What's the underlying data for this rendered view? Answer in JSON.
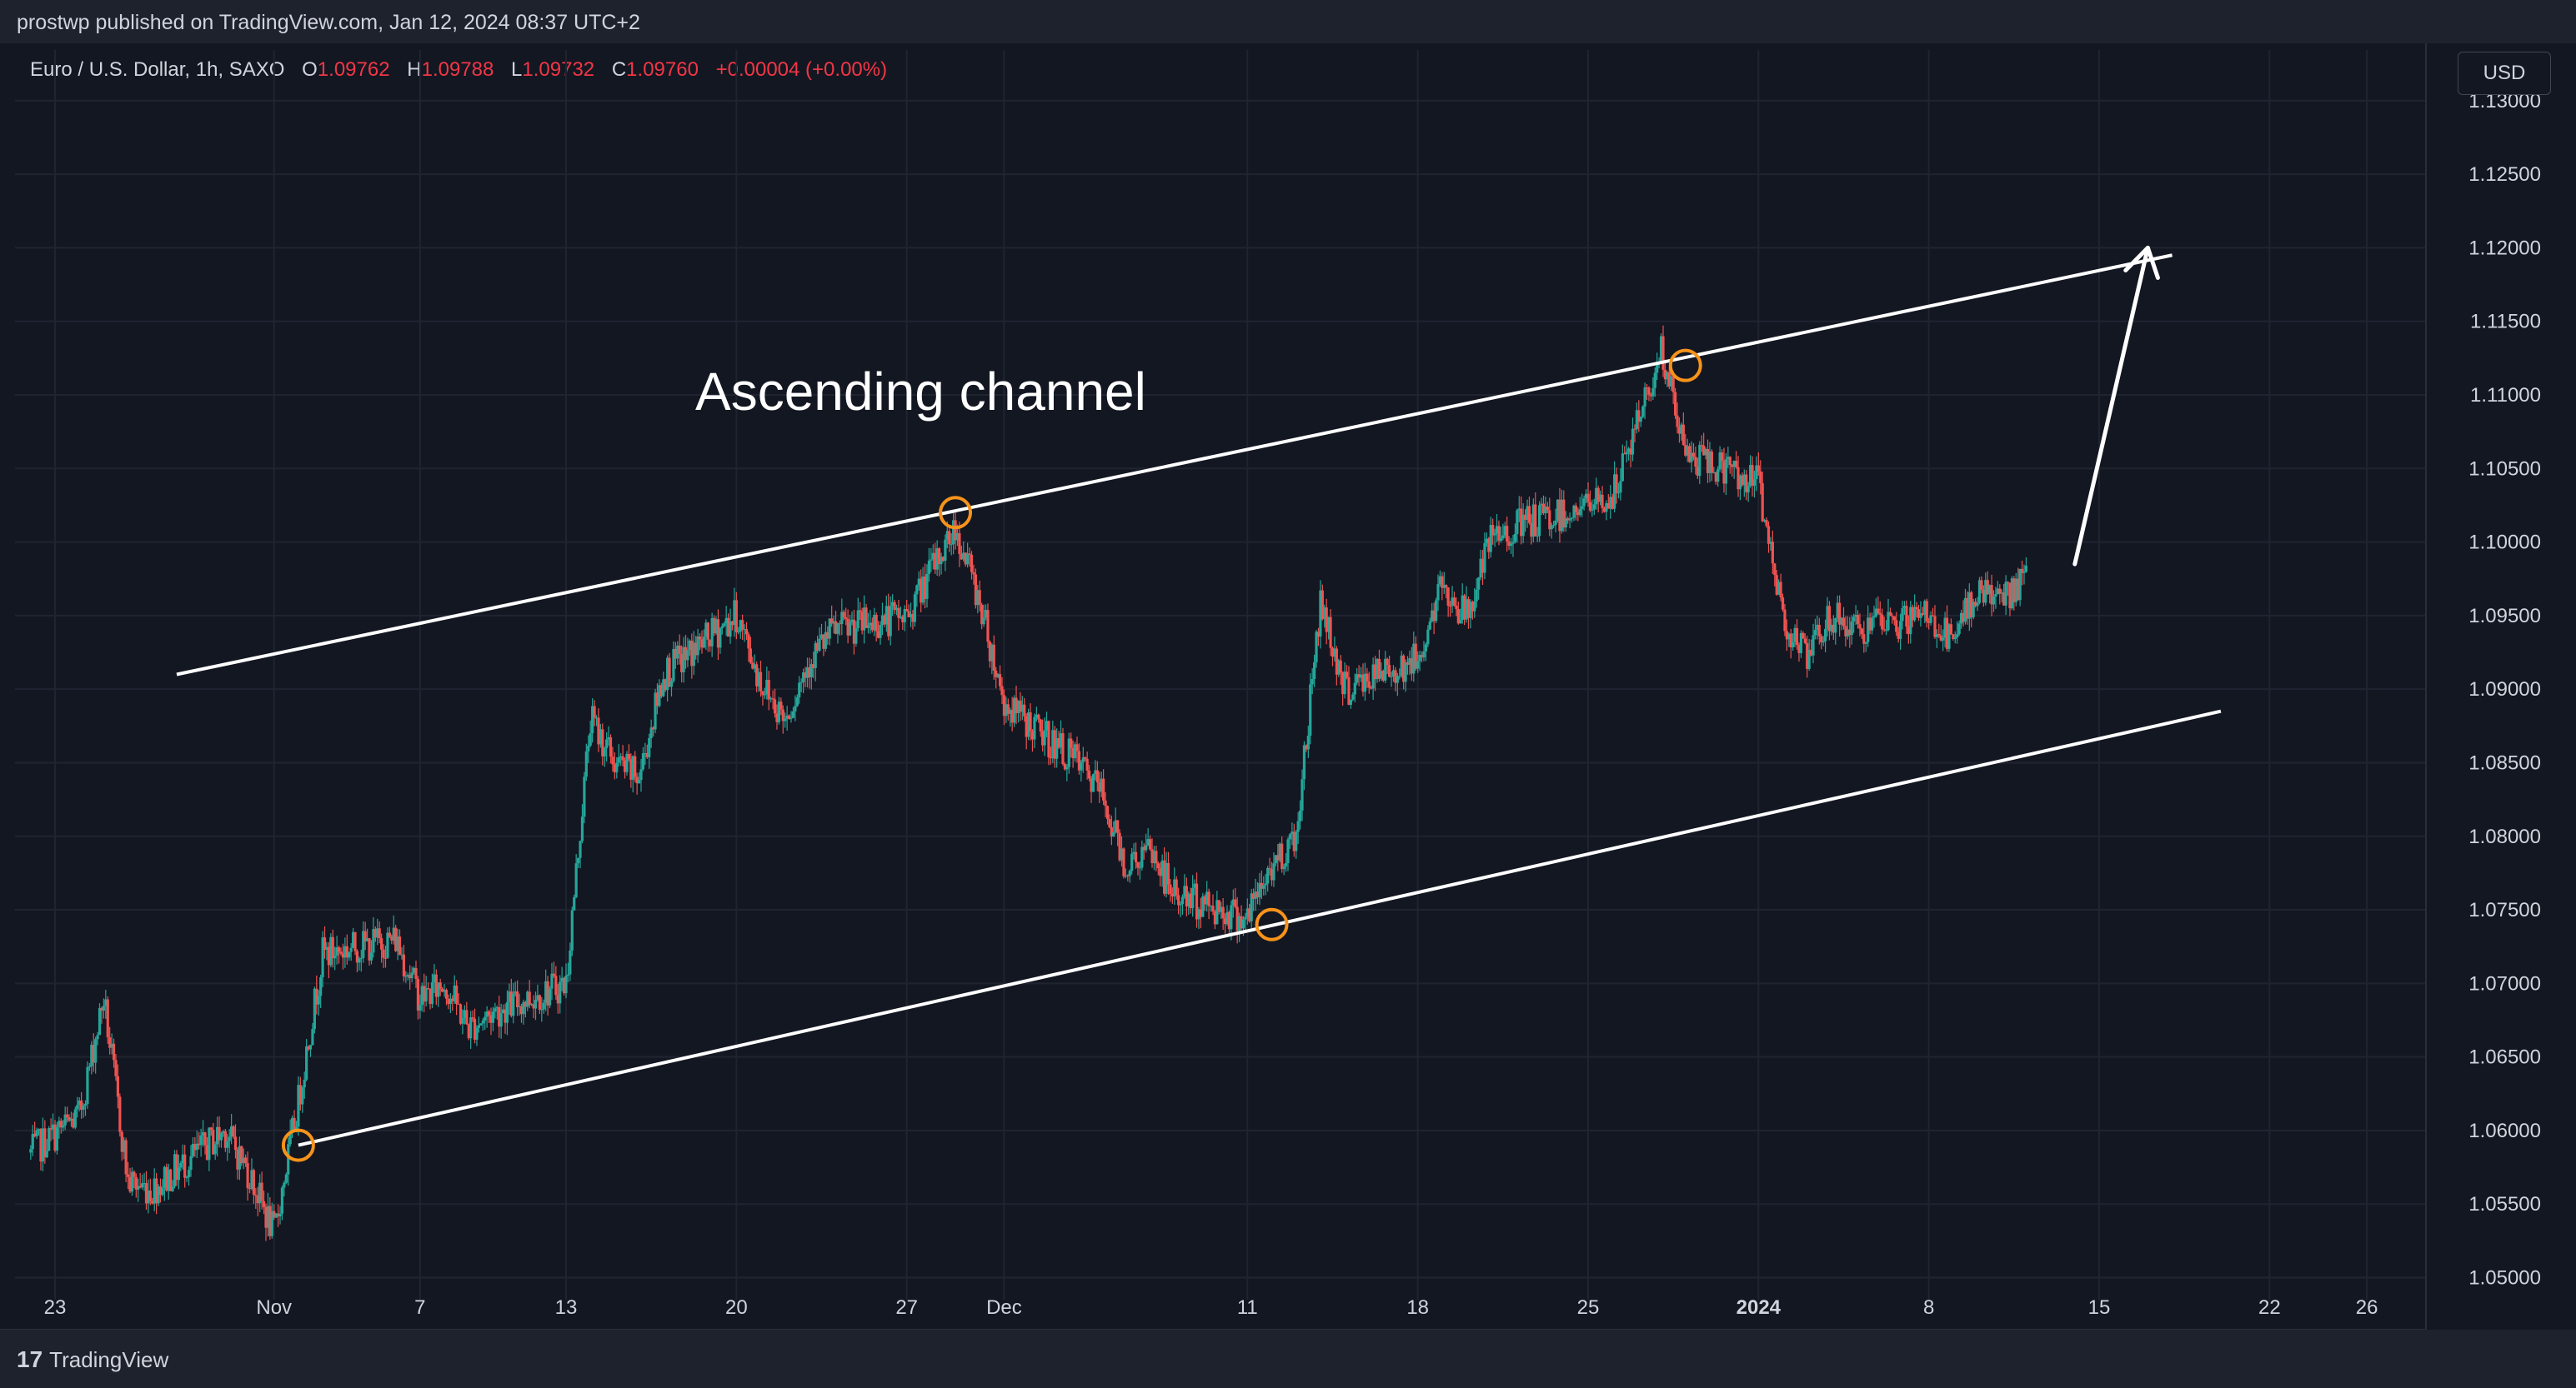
{
  "header": {
    "published": "prostwp published on TradingView.com, Jan 12, 2024 08:37 UTC+2"
  },
  "symbol": {
    "name": "Euro / U.S. Dollar, 1h, SAXO",
    "o_label": "O",
    "o_value": "1.09762",
    "h_label": "H",
    "h_value": "1.09788",
    "l_label": "L",
    "l_value": "1.09732",
    "c_label": "C",
    "c_value": "1.09760",
    "change": "+0.00004 (+0.00%)"
  },
  "currency_button": "USD",
  "footer": {
    "brand": "TradingView",
    "logo_mark": "17"
  },
  "colors": {
    "background": "#131722",
    "grid": "#1f2430",
    "up": "#26a69a",
    "down": "#ef5350",
    "annotation": "#ffffff",
    "marker": "#f7931a",
    "text": "#d1d4dc"
  },
  "chart_data": {
    "type": "candlestick",
    "annotation": "Ascending channel",
    "y_axis": {
      "ticks": [
        "1.13000",
        "1.12500",
        "1.12000",
        "1.11500",
        "1.11000",
        "1.10500",
        "1.10000",
        "1.09500",
        "1.09000",
        "1.08500",
        "1.08000",
        "1.07500",
        "1.07000",
        "1.06500",
        "1.06000",
        "1.05500",
        "1.05000"
      ],
      "range": [
        1.0485,
        1.1305
      ],
      "grid": true
    },
    "x_axis": {
      "ticks": [
        {
          "label": "23",
          "date": "2023-10-23",
          "bold": false
        },
        {
          "label": "Nov",
          "date": "2023-11-01",
          "bold": false
        },
        {
          "label": "7",
          "date": "2023-11-07",
          "bold": false
        },
        {
          "label": "13",
          "date": "2023-11-13",
          "bold": false
        },
        {
          "label": "20",
          "date": "2023-11-20",
          "bold": false
        },
        {
          "label": "27",
          "date": "2023-11-27",
          "bold": false
        },
        {
          "label": "Dec",
          "date": "2023-12-01",
          "bold": false
        },
        {
          "label": "11",
          "date": "2023-12-11",
          "bold": false
        },
        {
          "label": "18",
          "date": "2023-12-18",
          "bold": false
        },
        {
          "label": "25",
          "date": "2023-12-25",
          "bold": false
        },
        {
          "label": "2024",
          "date": "2024-01-01",
          "bold": true
        },
        {
          "label": "8",
          "date": "2024-01-08",
          "bold": false
        },
        {
          "label": "15",
          "date": "2024-01-15",
          "bold": false
        },
        {
          "label": "22",
          "date": "2024-01-22",
          "bold": false
        },
        {
          "label": "26",
          "date": "2024-01-26",
          "bold": false
        }
      ]
    },
    "price_path": [
      {
        "date": "2023-10-22",
        "close": 1.0585
      },
      {
        "date": "2023-10-24",
        "close": 1.061
      },
      {
        "date": "2023-10-25",
        "close": 1.069
      },
      {
        "date": "2023-10-26",
        "close": 1.0565
      },
      {
        "date": "2023-10-27",
        "close": 1.056
      },
      {
        "date": "2023-10-30",
        "close": 1.06
      },
      {
        "date": "2023-10-31",
        "close": 1.057
      },
      {
        "date": "2023-11-01",
        "close": 1.053
      },
      {
        "date": "2023-11-02",
        "close": 1.062
      },
      {
        "date": "2023-11-03",
        "close": 1.072
      },
      {
        "date": "2023-11-06",
        "close": 1.073
      },
      {
        "date": "2023-11-07",
        "close": 1.069
      },
      {
        "date": "2023-11-08",
        "close": 1.07
      },
      {
        "date": "2023-11-09",
        "close": 1.067
      },
      {
        "date": "2023-11-10",
        "close": 1.068
      },
      {
        "date": "2023-11-13",
        "close": 1.07
      },
      {
        "date": "2023-11-14",
        "close": 1.088
      },
      {
        "date": "2023-11-15",
        "close": 1.085
      },
      {
        "date": "2023-11-16",
        "close": 1.084
      },
      {
        "date": "2023-11-17",
        "close": 1.091
      },
      {
        "date": "2023-11-20",
        "close": 1.095
      },
      {
        "date": "2023-11-21",
        "close": 1.0905
      },
      {
        "date": "2023-11-22",
        "close": 1.088
      },
      {
        "date": "2023-11-23",
        "close": 1.092
      },
      {
        "date": "2023-11-24",
        "close": 1.094
      },
      {
        "date": "2023-11-27",
        "close": 1.095
      },
      {
        "date": "2023-11-28",
        "close": 1.098
      },
      {
        "date": "2023-11-29",
        "close": 1.101
      },
      {
        "date": "2023-11-30",
        "close": 1.096
      },
      {
        "date": "2023-12-01",
        "close": 1.089
      },
      {
        "date": "2023-12-04",
        "close": 1.085
      },
      {
        "date": "2023-12-05",
        "close": 1.083
      },
      {
        "date": "2023-12-06",
        "close": 1.078
      },
      {
        "date": "2023-12-07",
        "close": 1.079
      },
      {
        "date": "2023-12-08",
        "close": 1.076
      },
      {
        "date": "2023-12-11",
        "close": 1.0745
      },
      {
        "date": "2023-12-12",
        "close": 1.078
      },
      {
        "date": "2023-12-13",
        "close": 1.08
      },
      {
        "date": "2023-12-14",
        "close": 1.096
      },
      {
        "date": "2023-12-15",
        "close": 1.09
      },
      {
        "date": "2023-12-18",
        "close": 1.092
      },
      {
        "date": "2023-12-19",
        "close": 1.097
      },
      {
        "date": "2023-12-20",
        "close": 1.095
      },
      {
        "date": "2023-12-21",
        "close": 1.1
      },
      {
        "date": "2023-12-22",
        "close": 1.101
      },
      {
        "date": "2023-12-26",
        "close": 1.103
      },
      {
        "date": "2023-12-27",
        "close": 1.108
      },
      {
        "date": "2023-12-28",
        "close": 1.113
      },
      {
        "date": "2023-12-29",
        "close": 1.106
      },
      {
        "date": "2024-01-01",
        "close": 1.104
      },
      {
        "date": "2024-01-02",
        "close": 1.095
      },
      {
        "date": "2024-01-03",
        "close": 1.092
      },
      {
        "date": "2024-01-04",
        "close": 1.095
      },
      {
        "date": "2024-01-05",
        "close": 1.094
      },
      {
        "date": "2024-01-08",
        "close": 1.095
      },
      {
        "date": "2024-01-09",
        "close": 1.093
      },
      {
        "date": "2024-01-10",
        "close": 1.097
      },
      {
        "date": "2024-01-11",
        "close": 1.096
      },
      {
        "date": "2024-01-12",
        "close": 1.0976
      }
    ],
    "channel": {
      "upper": [
        {
          "date": "2023-10-28",
          "price": 1.091
        },
        {
          "date": "2024-01-18",
          "price": 1.1195
        }
      ],
      "lower": [
        {
          "date": "2023-11-02",
          "price": 1.059
        },
        {
          "date": "2024-01-20",
          "price": 1.0885
        }
      ]
    },
    "touch_points": [
      {
        "date": "2023-11-02",
        "price": 1.059
      },
      {
        "date": "2023-11-29",
        "price": 1.102
      },
      {
        "date": "2023-12-12",
        "price": 1.074
      },
      {
        "date": "2023-12-29",
        "price": 1.112
      }
    ],
    "projection_arrow": [
      {
        "date": "2024-01-14",
        "price": 1.0985
      },
      {
        "date": "2024-01-17",
        "price": 1.12
      }
    ]
  }
}
